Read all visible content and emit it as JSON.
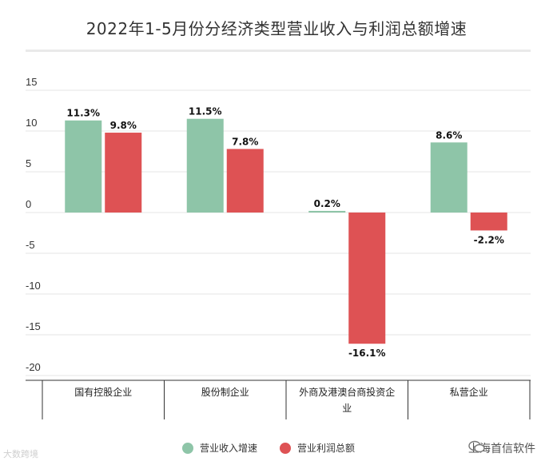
{
  "chart_data": {
    "type": "bar",
    "title": "2022年1-5月份分经济类型营业收入与利润总额增速",
    "categories": [
      "国有控股企业",
      "股份制企业",
      "外商及港澳台商投资企业",
      "私营企业"
    ],
    "category_lines": [
      [
        "国有控股企业"
      ],
      [
        "股份制企业"
      ],
      [
        "外商及港澳台商投资企",
        "业"
      ],
      [
        "私营企业"
      ]
    ],
    "series": [
      {
        "name": "营业收入增速",
        "color": "#8ec5a8",
        "values": [
          11.3,
          11.5,
          0.2,
          8.6
        ],
        "labels": [
          "11.3%",
          "11.5%",
          "0.2%",
          "8.6%"
        ]
      },
      {
        "name": "营业利润总额",
        "color": "#de5254",
        "values": [
          9.8,
          7.8,
          -16.1,
          -2.2
        ],
        "labels": [
          "9.8%",
          "7.8%",
          "-16.1%",
          "-2.2%"
        ]
      }
    ],
    "yticks": [
      15,
      10,
      5,
      0,
      -5,
      -10,
      -15,
      -20
    ],
    "ytick_labels": [
      "15",
      "10",
      "5",
      "0",
      "-5",
      "-10",
      "-15",
      "-20"
    ],
    "ylim": [
      -20,
      15
    ],
    "xlabel": "",
    "ylabel": "",
    "grid": true,
    "legend_position": "bottom"
  },
  "watermarks": {
    "left": "大数跨境",
    "right": "上海首信软件"
  }
}
